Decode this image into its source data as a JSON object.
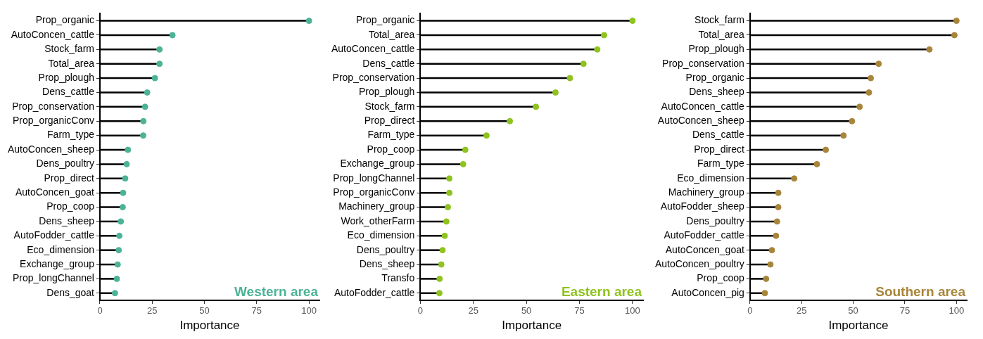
{
  "chart_data": [
    {
      "type": "lollipop",
      "orientation": "horizontal",
      "title": "Western area",
      "xlabel": "Importance",
      "grid": false,
      "xlim": [
        0,
        105
      ],
      "xticks": [
        0,
        25,
        50,
        75,
        100
      ],
      "categories": [
        "Prop_organic",
        "AutoConcen_cattle",
        "Stock_farm",
        "Total_area",
        "Prop_plough",
        "Dens_cattle",
        "Prop_conservation",
        "Prop_organicConv",
        "Farm_type",
        "AutoConcen_sheep",
        "Dens_poultry",
        "Prop_direct",
        "AutoConcen_goat",
        "Prop_coop",
        "Dens_sheep",
        "AutoFodder_cattle",
        "Eco_dimension",
        "Exchange_group",
        "Prop_longChannel",
        "Dens_goat"
      ],
      "series": [
        {
          "color": "#4db396",
          "values": [
            100,
            34.7,
            28.5,
            28.5,
            26.3,
            22.6,
            21.6,
            20.8,
            20.7,
            13.4,
            12.8,
            12.1,
            11.1,
            10.9,
            10.0,
            9.3,
            9.0,
            8.5,
            8.1,
            7.2
          ]
        }
      ]
    },
    {
      "type": "lollipop",
      "orientation": "horizontal",
      "title": "Eastern area",
      "xlabel": "Importance",
      "grid": false,
      "xlim": [
        0,
        105
      ],
      "xticks": [
        0,
        25,
        50,
        75,
        100
      ],
      "categories": [
        "Prop_organic",
        "Total_area",
        "AutoConcen_cattle",
        "Dens_cattle",
        "Prop_conservation",
        "Prop_plough",
        "Stock_farm",
        "Prop_direct",
        "Farm_type",
        "Prop_coop",
        "Exchange_group",
        "Prop_longChannel",
        "Prop_organicConv",
        "Machinery_group",
        "Work_otherFarm",
        "Eco_dimension",
        "Dens_poultry",
        "Dens_sheep",
        "Transfo",
        "AutoFodder_cattle"
      ],
      "series": [
        {
          "color": "#8fc31f",
          "values": [
            100,
            86.6,
            83.4,
            76.9,
            70.5,
            63.7,
            54.5,
            42.2,
            31.2,
            21.2,
            20.2,
            13.7,
            13.7,
            13.0,
            12.3,
            11.5,
            10.5,
            9.9,
            9.1,
            9.0
          ]
        }
      ]
    },
    {
      "type": "lollipop",
      "orientation": "horizontal",
      "title": "Southern area",
      "xlabel": "Importance",
      "grid": false,
      "xlim": [
        0,
        105
      ],
      "xticks": [
        0,
        25,
        50,
        75,
        100
      ],
      "categories": [
        "Stock_farm",
        "Total_area",
        "Prop_plough",
        "Prop_conservation",
        "Prop_organic",
        "Dens_sheep",
        "AutoConcen_cattle",
        "AutoConcen_sheep",
        "Dens_cattle",
        "Prop_direct",
        "Farm_type",
        "Eco_dimension",
        "Machinery_group",
        "AutoFodder_sheep",
        "Dens_poultry",
        "AutoFodder_cattle",
        "AutoConcen_goat",
        "AutoConcen_poultry",
        "Prop_coop",
        "AutoConcen_pig"
      ],
      "series": [
        {
          "color": "#a8853a",
          "values": [
            100,
            99,
            86.9,
            62.3,
            58.5,
            57.6,
            53.1,
            49.4,
            45.3,
            36.7,
            32.4,
            21.4,
            13.7,
            13.7,
            13.1,
            12.6,
            10.6,
            9.9,
            7.8,
            7.2
          ]
        }
      ]
    }
  ]
}
